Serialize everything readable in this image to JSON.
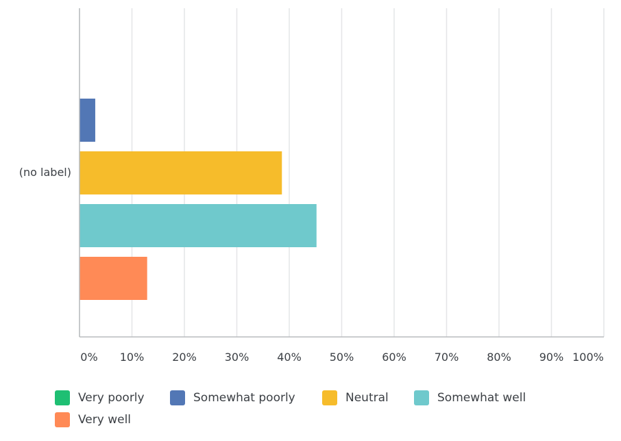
{
  "chart_data": {
    "type": "bar",
    "orientation": "horizontal",
    "categories": [
      "(no label)"
    ],
    "series": [
      {
        "name": "Very poorly",
        "values": [
          0
        ],
        "color": "#1fbf73"
      },
      {
        "name": "Somewhat poorly",
        "values": [
          3
        ],
        "color": "#5277b5"
      },
      {
        "name": "Neutral",
        "values": [
          38.6
        ],
        "color": "#f6bc2b"
      },
      {
        "name": "Somewhat well",
        "values": [
          45.2
        ],
        "color": "#6fc9cc"
      },
      {
        "name": "Very well",
        "values": [
          12.9
        ],
        "color": "#ff8a56"
      }
    ],
    "x_ticks": [
      "0%",
      "10%",
      "20%",
      "30%",
      "40%",
      "50%",
      "60%",
      "70%",
      "80%",
      "90%",
      "100%"
    ],
    "xlim": [
      0,
      100
    ],
    "grid": true,
    "legend_position": "bottom",
    "title": "",
    "xlabel": "",
    "ylabel": ""
  }
}
